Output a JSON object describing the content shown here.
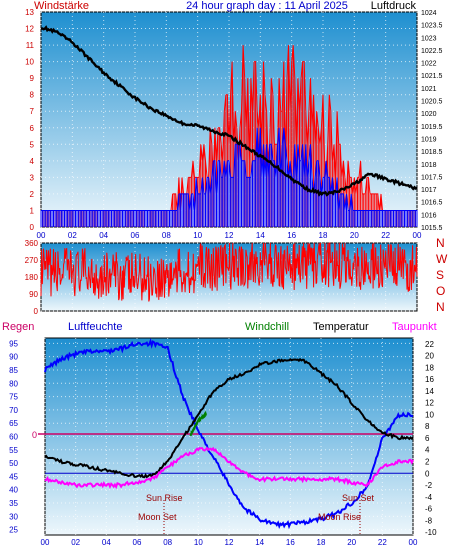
{
  "header": {
    "left_label": "Windstärke",
    "title": "24 hour graph day : 11 April 2025",
    "right_label": "Luftdruck"
  },
  "legend": {
    "rain": "Regen",
    "humidity": "Luftfeuchte",
    "windchill": "Windchill",
    "temperature": "Temperatur",
    "dewpoint": "Taupunkt"
  },
  "annotations": {
    "sun_rise_1": "Sun Rise",
    "moon_set": "Moon Set",
    "sun_set": "Sun Set",
    "moon_rise": "Moon Rise",
    "rain_zero": "0"
  },
  "colors": {
    "panel_top": "#1e8fd0",
    "panel_bottom": "#eef7fc",
    "pressure": "#000000",
    "wind": "#ff0000",
    "gust": "#0000ff",
    "humidity": "#0000ff",
    "temperature": "#000000",
    "dewpoint": "#ff00ff",
    "windchill": "#008000",
    "zero_line": "#cc0066",
    "axis_left": "#cc0000",
    "axis_blue": "#0000cc"
  },
  "chart_data": [
    {
      "type": "line",
      "title": "24 hour graph day : 11 April 2025",
      "ylabel": "Windstärke",
      "y2label": "Luftdruck",
      "x_ticks": [
        "00",
        "02",
        "04",
        "06",
        "08",
        "10",
        "12",
        "14",
        "16",
        "18",
        "20",
        "22",
        "00"
      ],
      "ylim": [
        0,
        13
      ],
      "y_ticks": [
        "0",
        "1",
        "2",
        "3",
        "4",
        "5",
        "6",
        "7",
        "8",
        "9",
        "10",
        "11",
        "12",
        "13"
      ],
      "y2lim": [
        1015.5,
        1024
      ],
      "y2_ticks": [
        "1015.5",
        "1016",
        "1016.5",
        "1017",
        "1017.5",
        "1018",
        "1018.5",
        "1019",
        "1019.5",
        "1020",
        "1020.5",
        "1021",
        "1021.5",
        "1022",
        "1022.5",
        "1023",
        "1023.5",
        "1024"
      ],
      "series": [
        {
          "name": "Luftdruck",
          "axis": "right",
          "x": [
            0,
            1,
            2,
            3,
            4,
            5,
            6,
            7,
            8,
            9,
            10,
            11,
            12,
            13,
            14,
            15,
            16,
            17,
            18,
            19,
            20,
            21,
            22,
            23,
            24
          ],
          "values": [
            1023.4,
            1023.2,
            1022.8,
            1022.2,
            1021.6,
            1021.1,
            1020.6,
            1020.2,
            1019.9,
            1019.6,
            1019.5,
            1019.3,
            1019.1,
            1018.7,
            1018.3,
            1017.9,
            1017.4,
            1017.0,
            1016.8,
            1016.9,
            1017.2,
            1017.6,
            1017.4,
            1017.2,
            1017.0
          ]
        },
        {
          "name": "Windstärke",
          "axis": "left",
          "x": [
            0,
            1,
            2,
            3,
            4,
            5,
            6,
            7,
            8,
            9,
            10,
            11,
            12,
            13,
            14,
            15,
            16,
            17,
            18,
            19,
            20,
            21,
            22,
            23,
            24
          ],
          "values": [
            1,
            1,
            1,
            1,
            1,
            1,
            1,
            1,
            1,
            2,
            3,
            5,
            7,
            8,
            8,
            7,
            8,
            7,
            6,
            5,
            3,
            2,
            1,
            1,
            1
          ]
        },
        {
          "name": "Gust",
          "axis": "left",
          "x": [
            0,
            1,
            2,
            3,
            4,
            5,
            6,
            7,
            8,
            9,
            10,
            11,
            12,
            13,
            14,
            15,
            16,
            17,
            18,
            19,
            20,
            21,
            22,
            23,
            24
          ],
          "values": [
            1,
            1,
            1,
            1,
            1,
            1,
            1,
            1,
            1,
            2,
            2,
            3,
            4,
            4,
            5,
            4,
            4,
            4,
            3,
            2,
            1,
            1,
            1,
            1,
            1
          ]
        }
      ]
    },
    {
      "type": "line",
      "ylabel": "",
      "ylim": [
        0,
        360
      ],
      "y_ticks": [
        "0",
        "90",
        "180",
        "270",
        "360"
      ],
      "right_labels": [
        "N",
        "W",
        "S",
        "O",
        "N"
      ],
      "series": [
        {
          "name": "Windrichtung",
          "x": [
            0,
            2,
            4,
            6,
            8,
            10,
            12,
            14,
            16,
            18,
            20,
            22,
            24
          ],
          "values": [
            200,
            210,
            190,
            180,
            180,
            230,
            240,
            250,
            240,
            250,
            240,
            230,
            225
          ]
        }
      ]
    },
    {
      "type": "line",
      "x_ticks": [
        "00",
        "02",
        "04",
        "06",
        "08",
        "10",
        "12",
        "14",
        "16",
        "18",
        "20",
        "22",
        "00"
      ],
      "y_left_ticks": [
        "25",
        "30",
        "35",
        "40",
        "45",
        "50",
        "55",
        "60",
        "65",
        "70",
        "75",
        "80",
        "85",
        "90",
        "95"
      ],
      "ylim_left": [
        23,
        97
      ],
      "y_right_ticks": [
        "-10",
        "-8",
        "-6",
        "-4",
        "-2",
        "0",
        "2",
        "4",
        "6",
        "8",
        "10",
        "12",
        "14",
        "16",
        "18",
        "20",
        "22"
      ],
      "ylim_right": [
        -10.5,
        23
      ],
      "series": [
        {
          "name": "Luftfeuchte",
          "axis": "left",
          "x": [
            0,
            1,
            2,
            3,
            4,
            5,
            6,
            7,
            8,
            9,
            10,
            11,
            12,
            13,
            14,
            15,
            16,
            17,
            18,
            19,
            20,
            21,
            22,
            23,
            24
          ],
          "values": [
            85,
            89,
            91,
            92,
            92,
            93,
            95,
            95,
            93,
            75,
            62,
            52,
            42,
            33,
            29,
            27,
            27,
            28,
            29,
            31,
            35,
            41,
            59,
            68,
            68
          ]
        },
        {
          "name": "Temperatur",
          "axis": "right",
          "x": [
            0,
            1,
            2,
            3,
            4,
            5,
            6,
            7,
            8,
            9,
            10,
            11,
            12,
            13,
            14,
            15,
            16,
            17,
            18,
            19,
            20,
            21,
            22,
            23,
            24
          ],
          "values": [
            3,
            2,
            1.5,
            1,
            0.5,
            0,
            -0.5,
            -0.5,
            2,
            6,
            10,
            14,
            16,
            17,
            18.5,
            19,
            19.5,
            19,
            17,
            15,
            12,
            9,
            7,
            6,
            6
          ]
        },
        {
          "name": "Taupunkt",
          "axis": "right",
          "x": [
            0,
            1,
            2,
            3,
            4,
            5,
            6,
            7,
            8,
            9,
            10,
            11,
            12,
            13,
            14,
            15,
            16,
            17,
            18,
            19,
            20,
            21,
            22,
            23,
            24
          ],
          "values": [
            -1,
            -1.5,
            -2,
            -2,
            -2,
            -2,
            -1.5,
            -1,
            1,
            3,
            4,
            4,
            2,
            0,
            -1,
            -1,
            -1,
            -1,
            -1,
            -1,
            -1.5,
            -2,
            1,
            2,
            2
          ]
        },
        {
          "name": "Windchill",
          "axis": "right",
          "x": [
            9.5,
            10,
            10.5
          ],
          "values": [
            6.5,
            9,
            10
          ]
        }
      ]
    }
  ]
}
